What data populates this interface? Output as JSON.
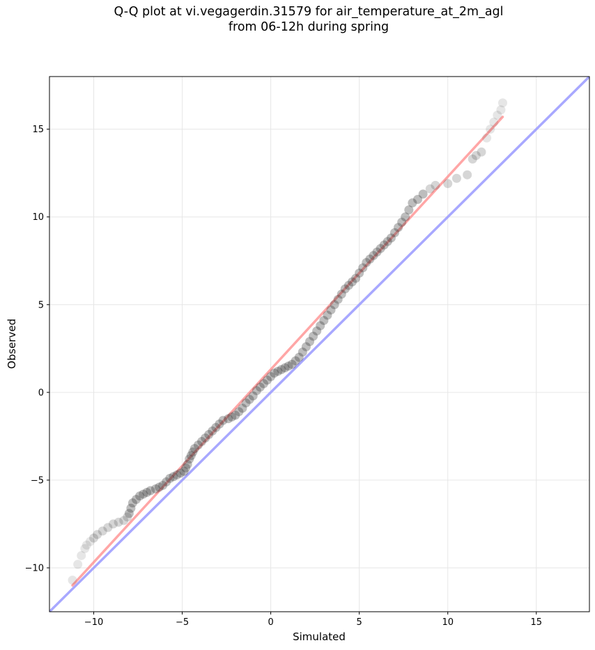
{
  "chart_data": {
    "type": "scatter",
    "title_line1": "Q-Q plot at vi.vegagerdin.31579 for air_temperature_at_2m_agl",
    "title_line2": "from 06-12h during spring",
    "xlabel": "Simulated",
    "ylabel": "Observed",
    "xlim": [
      -12.5,
      18.0
    ],
    "ylim": [
      -12.5,
      18.0
    ],
    "xticks": [
      -10,
      -5,
      0,
      5,
      10,
      15
    ],
    "yticks": [
      -10,
      -5,
      0,
      5,
      10,
      15
    ],
    "xtick_labels": [
      "−10",
      "−5",
      "0",
      "5",
      "10",
      "15"
    ],
    "ytick_labels": [
      "−10",
      "−5",
      "0",
      "5",
      "10",
      "15"
    ],
    "grid": true,
    "identity_line": {
      "from": [
        -12.5,
        -12.5
      ],
      "to": [
        18.0,
        18.0
      ],
      "color": "#9999ff"
    },
    "fit_line": {
      "from": [
        -11.2,
        -11.0
      ],
      "to": [
        13.1,
        15.7
      ],
      "color": "#ff8888"
    },
    "points_color": "#333333",
    "points": [
      [
        -11.2,
        -10.7
      ],
      [
        -10.9,
        -9.8
      ],
      [
        -10.7,
        -9.3
      ],
      [
        -10.5,
        -8.9
      ],
      [
        -10.4,
        -8.7
      ],
      [
        -10.2,
        -8.5
      ],
      [
        -10.0,
        -8.3
      ],
      [
        -9.8,
        -8.1
      ],
      [
        -9.5,
        -7.9
      ],
      [
        -9.2,
        -7.7
      ],
      [
        -8.9,
        -7.5
      ],
      [
        -8.6,
        -7.4
      ],
      [
        -8.3,
        -7.3
      ],
      [
        -8.1,
        -7.1
      ],
      [
        -8.0,
        -6.9
      ],
      [
        -7.9,
        -6.6
      ],
      [
        -7.8,
        -6.3
      ],
      [
        -7.6,
        -6.1
      ],
      [
        -7.4,
        -5.9
      ],
      [
        -7.2,
        -5.8
      ],
      [
        -7.0,
        -5.7
      ],
      [
        -6.8,
        -5.6
      ],
      [
        -6.5,
        -5.5
      ],
      [
        -6.3,
        -5.4
      ],
      [
        -6.1,
        -5.3
      ],
      [
        -5.9,
        -5.1
      ],
      [
        -5.7,
        -4.9
      ],
      [
        -5.5,
        -4.8
      ],
      [
        -5.3,
        -4.7
      ],
      [
        -5.1,
        -4.6
      ],
      [
        -4.9,
        -4.5
      ],
      [
        -4.8,
        -4.3
      ],
      [
        -4.7,
        -4.1
      ],
      [
        -4.6,
        -3.8
      ],
      [
        -4.5,
        -3.6
      ],
      [
        -4.4,
        -3.4
      ],
      [
        -4.3,
        -3.2
      ],
      [
        -4.1,
        -3.0
      ],
      [
        -3.9,
        -2.8
      ],
      [
        -3.7,
        -2.6
      ],
      [
        -3.5,
        -2.4
      ],
      [
        -3.3,
        -2.2
      ],
      [
        -3.1,
        -2.0
      ],
      [
        -2.9,
        -1.8
      ],
      [
        -2.7,
        -1.6
      ],
      [
        -2.4,
        -1.5
      ],
      [
        -2.2,
        -1.4
      ],
      [
        -2.0,
        -1.3
      ],
      [
        -1.8,
        -1.1
      ],
      [
        -1.6,
        -0.9
      ],
      [
        -1.4,
        -0.6
      ],
      [
        -1.2,
        -0.4
      ],
      [
        -1.0,
        -0.2
      ],
      [
        -0.8,
        0.1
      ],
      [
        -0.6,
        0.3
      ],
      [
        -0.4,
        0.5
      ],
      [
        -0.2,
        0.7
      ],
      [
        0.0,
        0.9
      ],
      [
        0.2,
        1.1
      ],
      [
        0.4,
        1.2
      ],
      [
        0.6,
        1.3
      ],
      [
        0.8,
        1.4
      ],
      [
        1.0,
        1.5
      ],
      [
        1.2,
        1.6
      ],
      [
        1.4,
        1.8
      ],
      [
        1.6,
        2.0
      ],
      [
        1.8,
        2.3
      ],
      [
        2.0,
        2.6
      ],
      [
        2.2,
        2.9
      ],
      [
        2.4,
        3.2
      ],
      [
        2.6,
        3.5
      ],
      [
        2.8,
        3.8
      ],
      [
        3.0,
        4.1
      ],
      [
        3.2,
        4.4
      ],
      [
        3.4,
        4.7
      ],
      [
        3.6,
        5.0
      ],
      [
        3.8,
        5.3
      ],
      [
        4.0,
        5.6
      ],
      [
        4.2,
        5.9
      ],
      [
        4.4,
        6.1
      ],
      [
        4.6,
        6.3
      ],
      [
        4.8,
        6.5
      ],
      [
        5.0,
        6.8
      ],
      [
        5.2,
        7.1
      ],
      [
        5.4,
        7.4
      ],
      [
        5.6,
        7.6
      ],
      [
        5.8,
        7.8
      ],
      [
        6.0,
        8.0
      ],
      [
        6.2,
        8.2
      ],
      [
        6.4,
        8.4
      ],
      [
        6.6,
        8.6
      ],
      [
        6.8,
        8.8
      ],
      [
        7.0,
        9.1
      ],
      [
        7.2,
        9.4
      ],
      [
        7.4,
        9.7
      ],
      [
        7.6,
        10.0
      ],
      [
        7.8,
        10.4
      ],
      [
        8.0,
        10.8
      ],
      [
        8.3,
        11.0
      ],
      [
        8.6,
        11.3
      ],
      [
        9.0,
        11.6
      ],
      [
        9.3,
        11.8
      ],
      [
        10.0,
        11.9
      ],
      [
        10.5,
        12.2
      ],
      [
        11.1,
        12.4
      ],
      [
        11.4,
        13.3
      ],
      [
        11.6,
        13.5
      ],
      [
        11.9,
        13.7
      ],
      [
        12.2,
        14.5
      ],
      [
        12.4,
        15.0
      ],
      [
        12.6,
        15.4
      ],
      [
        12.8,
        15.8
      ],
      [
        13.0,
        16.1
      ],
      [
        13.1,
        16.5
      ]
    ]
  }
}
